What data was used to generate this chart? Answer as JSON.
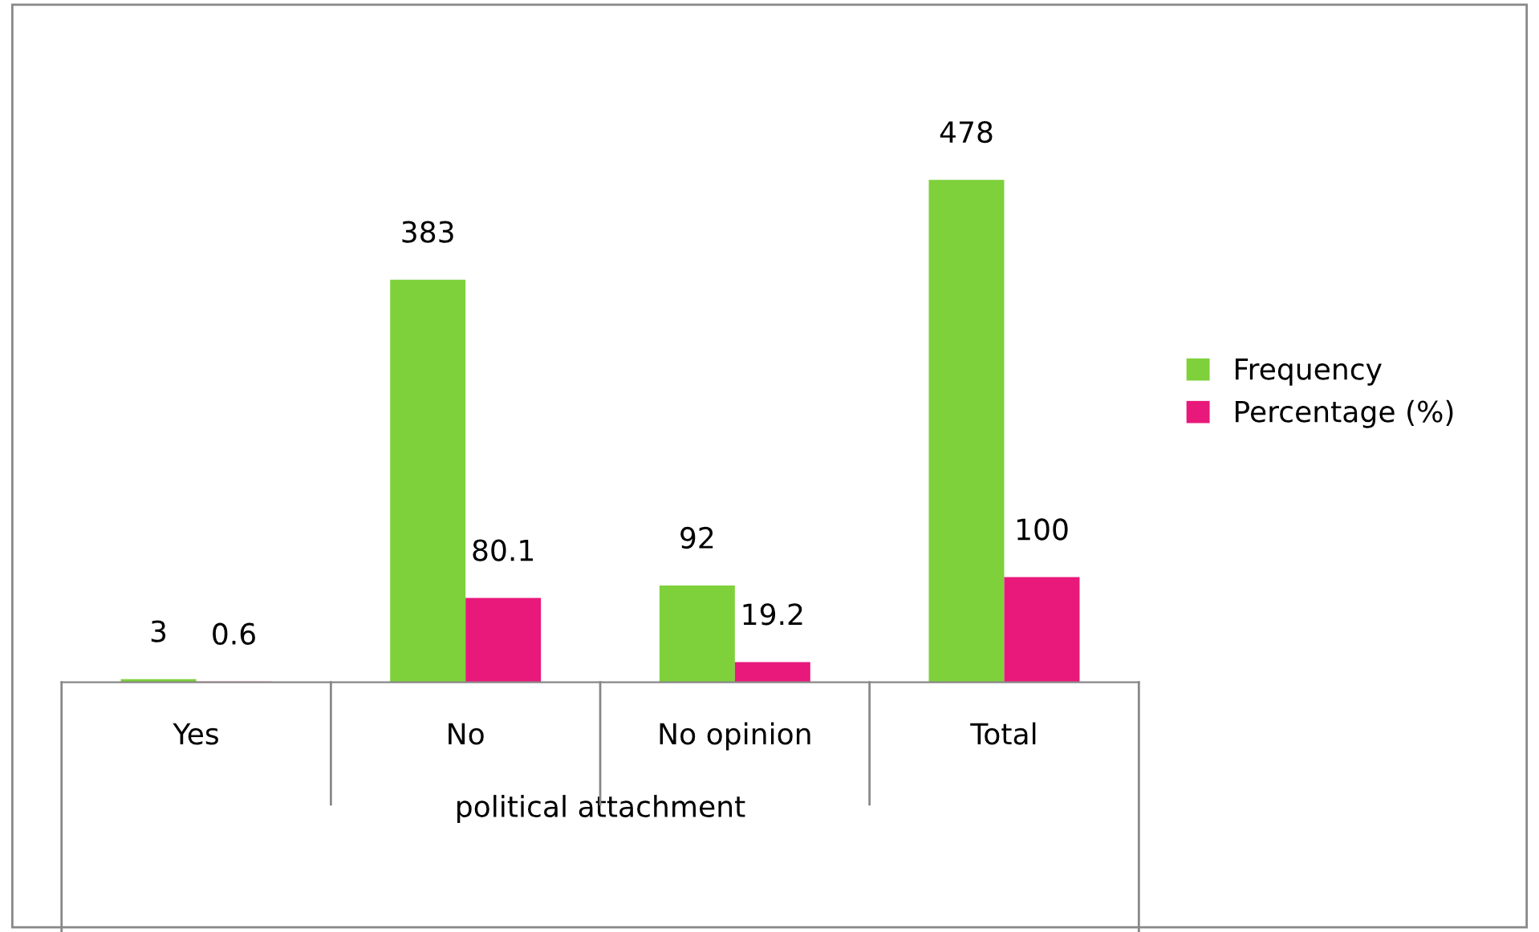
{
  "chart_data": {
    "type": "bar",
    "xlabel": "political attachment",
    "categories": [
      "Yes",
      "No",
      "No opinion",
      "Total"
    ],
    "series": [
      {
        "name": "Frequency",
        "color": "#7ed13b",
        "values": [
          3,
          383,
          92,
          478
        ]
      },
      {
        "name": "Percentage (%)",
        "color": "#e8197a",
        "values": [
          0.6,
          80.1,
          19.2,
          100
        ]
      }
    ],
    "data_labels": true,
    "legend": "right",
    "grid": false
  }
}
